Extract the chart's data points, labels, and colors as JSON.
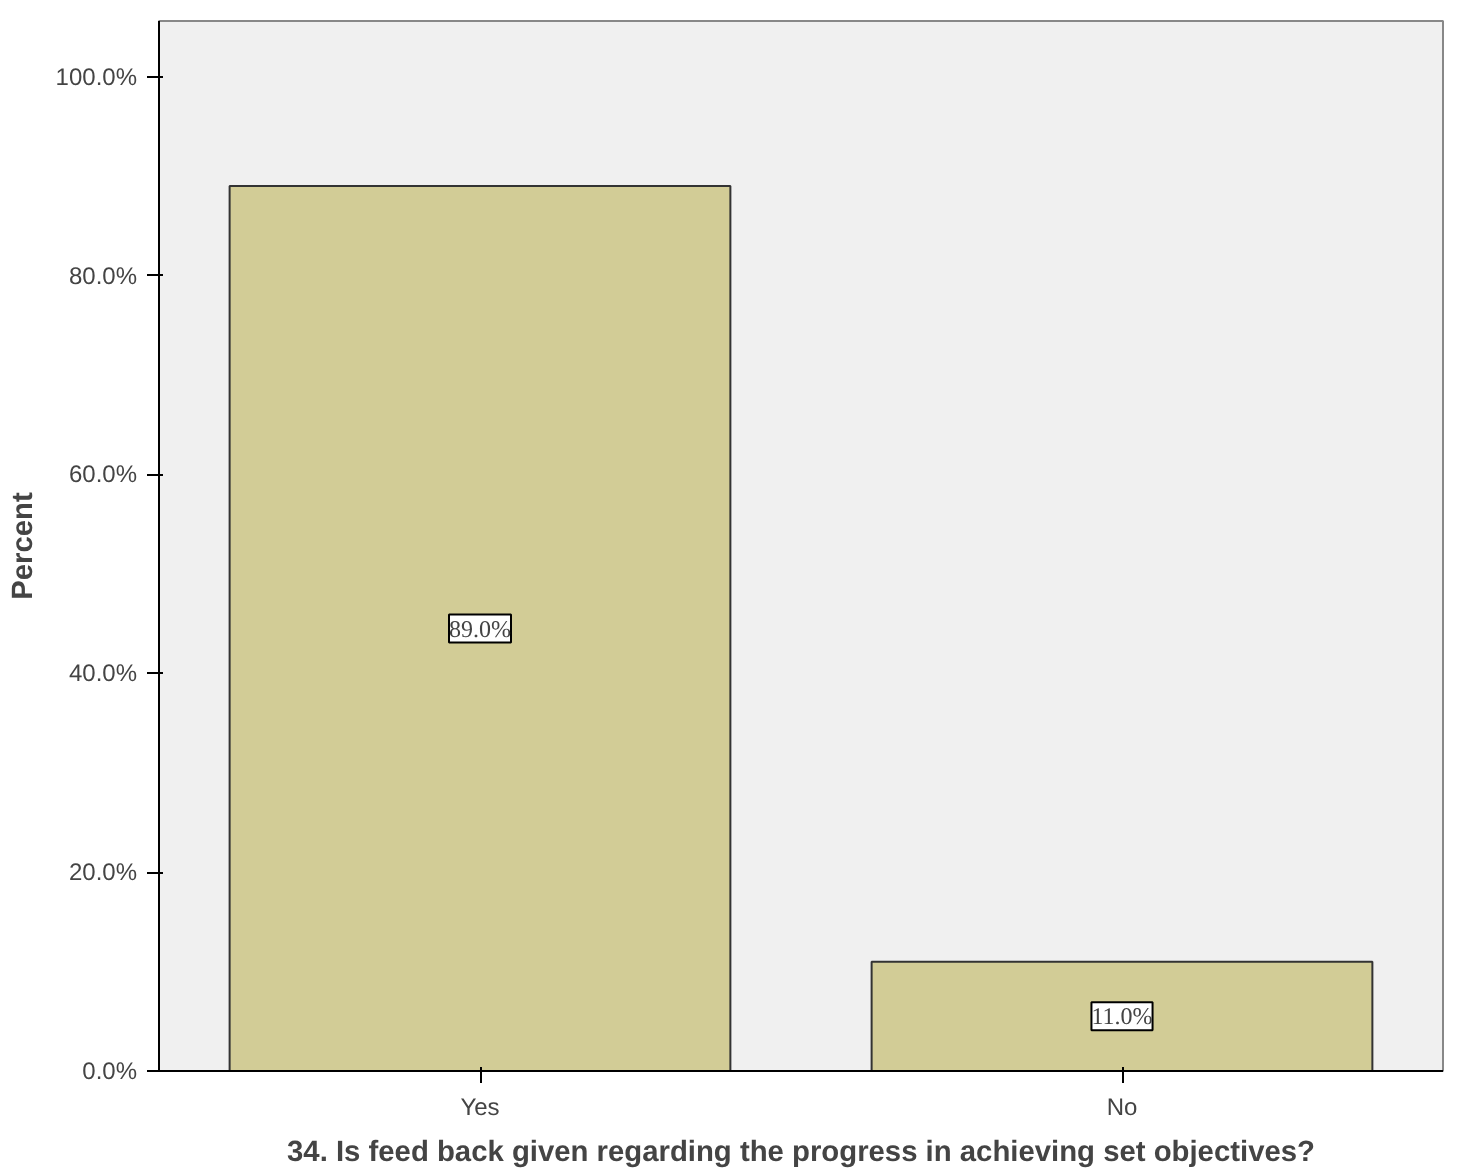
{
  "chart_data": {
    "type": "bar",
    "xlabel": "34. Is feed back given regarding the progress in achieving set objectives?",
    "ylabel": "Percent",
    "categories": [
      "Yes",
      "No"
    ],
    "values": [
      89.0,
      11.0
    ],
    "value_labels": [
      "89.0%",
      "11.0%"
    ],
    "color": "#d2cc96",
    "ylim": [
      0,
      105.6
    ],
    "yticks": [
      {
        "value": 0,
        "label": "0.0%"
      },
      {
        "value": 20,
        "label": "20.0%"
      },
      {
        "value": 40,
        "label": "40.0%"
      },
      {
        "value": 60,
        "label": "60.0%"
      },
      {
        "value": 80,
        "label": "80.0%"
      },
      {
        "value": 100,
        "label": "100.0%"
      }
    ],
    "grid": false
  }
}
